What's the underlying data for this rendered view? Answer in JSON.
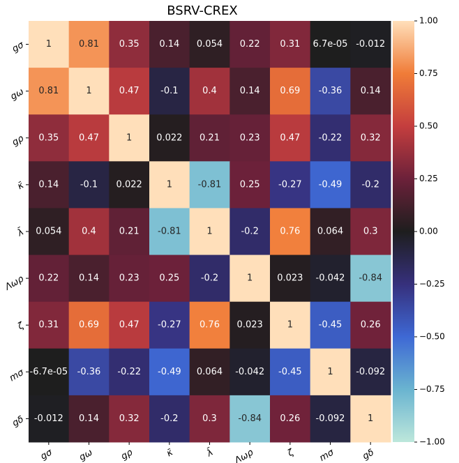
{
  "chart_data": {
    "type": "heatmap",
    "title": "BSRV-CREX",
    "x_categories": [
      "gσ",
      "gω",
      "gρ",
      "κ̄",
      "λ̄",
      "Λωρ",
      "ζ",
      "mσ",
      "gδ"
    ],
    "y_categories": [
      "gσ",
      "gω",
      "gρ",
      "κ̄",
      "λ̄",
      "Λωρ",
      "ζ",
      "mσ",
      "gδ"
    ],
    "values": [
      [
        1,
        0.81,
        0.35,
        0.14,
        0.054,
        0.22,
        0.31,
        6.7e-05,
        -0.012
      ],
      [
        0.81,
        1,
        0.47,
        -0.1,
        0.4,
        0.14,
        0.69,
        -0.36,
        0.14
      ],
      [
        0.35,
        0.47,
        1,
        0.022,
        0.21,
        0.23,
        0.47,
        -0.22,
        0.32
      ],
      [
        0.14,
        -0.1,
        0.022,
        1,
        -0.81,
        0.25,
        -0.27,
        -0.49,
        -0.2
      ],
      [
        0.054,
        0.4,
        0.21,
        -0.81,
        1,
        -0.2,
        0.76,
        0.064,
        0.3
      ],
      [
        0.22,
        0.14,
        0.23,
        0.25,
        -0.2,
        1,
        0.023,
        -0.042,
        -0.84
      ],
      [
        0.31,
        0.69,
        0.47,
        -0.27,
        0.76,
        0.023,
        1,
        -0.45,
        0.26
      ],
      [
        -6.7e-05,
        -0.36,
        -0.22,
        -0.49,
        0.064,
        -0.042,
        -0.45,
        1,
        -0.092
      ],
      [
        -0.012,
        0.14,
        0.32,
        -0.2,
        0.3,
        -0.84,
        0.26,
        -0.092,
        1
      ]
    ],
    "value_labels": [
      [
        "1",
        "0.81",
        "0.35",
        "0.14",
        "0.054",
        "0.22",
        "0.31",
        "6.7e-05",
        "-0.012"
      ],
      [
        "0.81",
        "1",
        "0.47",
        "-0.1",
        "0.4",
        "0.14",
        "0.69",
        "-0.36",
        "0.14"
      ],
      [
        "0.35",
        "0.47",
        "1",
        "0.022",
        "0.21",
        "0.23",
        "0.47",
        "-0.22",
        "0.32"
      ],
      [
        "0.14",
        "-0.1",
        "0.022",
        "1",
        "-0.81",
        "0.25",
        "-0.27",
        "-0.49",
        "-0.2"
      ],
      [
        "0.054",
        "0.4",
        "0.21",
        "-0.81",
        "1",
        "-0.2",
        "0.76",
        "0.064",
        "0.3"
      ],
      [
        "0.22",
        "0.14",
        "0.23",
        "0.25",
        "-0.2",
        "1",
        "0.023",
        "-0.042",
        "-0.84"
      ],
      [
        "0.31",
        "0.69",
        "0.47",
        "-0.27",
        "0.76",
        "0.023",
        "1",
        "-0.45",
        "0.26"
      ],
      [
        "-6.7e-05",
        "-0.36",
        "-0.22",
        "-0.49",
        "0.064",
        "-0.042",
        "-0.45",
        "1",
        "-0.092"
      ],
      [
        "-0.012",
        "0.14",
        "0.32",
        "-0.2",
        "0.3",
        "-0.84",
        "0.26",
        "-0.092",
        "1"
      ]
    ],
    "colormap": "icefire",
    "clim": [
      -1,
      1
    ],
    "cticks": [
      {
        "value": -1,
        "label": "−1.00"
      },
      {
        "value": -0.75,
        "label": "−0.75"
      },
      {
        "value": -0.5,
        "label": "−0.50"
      },
      {
        "value": -0.25,
        "label": "−0.25"
      },
      {
        "value": 0,
        "label": "0.00"
      },
      {
        "value": 0.25,
        "label": "0.25"
      },
      {
        "value": 0.5,
        "label": "0.50"
      },
      {
        "value": 0.75,
        "label": "0.75"
      },
      {
        "value": 1,
        "label": "1.00"
      }
    ]
  }
}
